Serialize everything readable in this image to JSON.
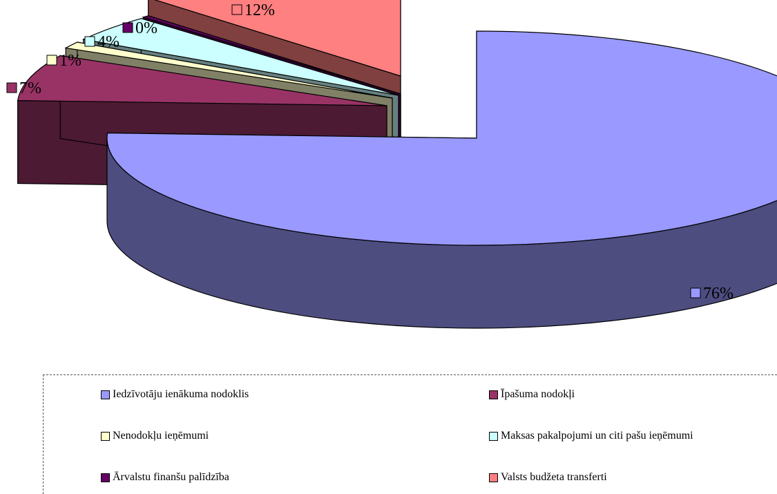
{
  "chart_data": {
    "type": "pie",
    "style": "3d-exploded",
    "slices": [
      {
        "label": "Iedzīvotāju ienākuma nodoklis",
        "value": 76,
        "display": "76%",
        "color": "#9999FF",
        "side_color": "#4D4D80"
      },
      {
        "label": "Īpašuma nodokļi",
        "value": 7,
        "display": "7%",
        "color": "#993366",
        "side_color": "#4D1A33"
      },
      {
        "label": "Nenodokļu ieņēmumi",
        "value": 1,
        "display": "1%",
        "color": "#FFFFCC",
        "side_color": "#808066"
      },
      {
        "label": "Maksas pakalpojumi un citi pašu ieņēmumi",
        "value": 4,
        "display": "4%",
        "color": "#CCFFFF",
        "side_color": "#668080"
      },
      {
        "label": "Ārvalstu finanšu palīdzība",
        "value": 0.3,
        "display": "0%",
        "color": "#660066",
        "side_color": "#330033"
      },
      {
        "label": "Valsts budžeta transferti",
        "value": 12,
        "display": "12%",
        "color": "#FF8080",
        "side_color": "#804040"
      }
    ],
    "legend_position": "bottom",
    "legend_columns": 2
  }
}
